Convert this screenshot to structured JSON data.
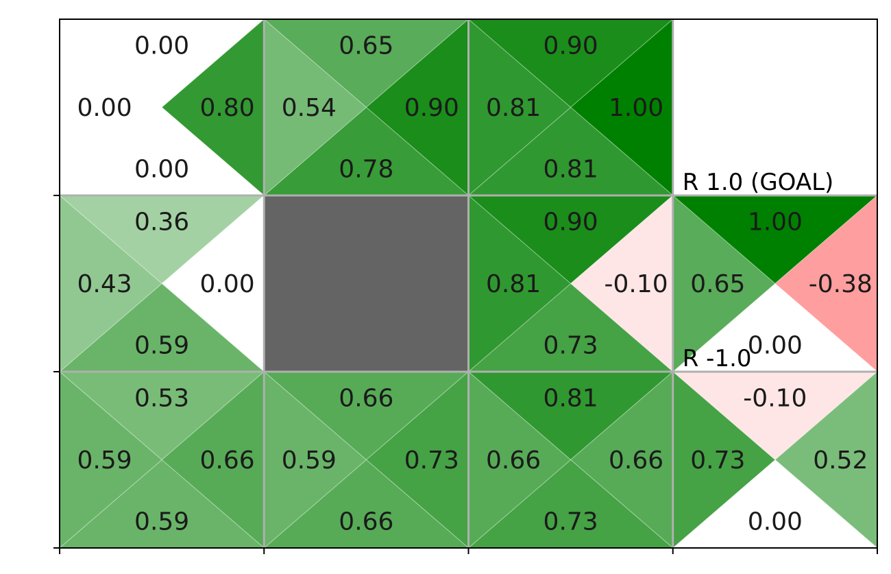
{
  "chart_data": {
    "type": "heatmap",
    "title": "",
    "xlabel": "",
    "ylabel": "",
    "grid": {
      "columns": 4,
      "rows": 3
    },
    "color_scale": {
      "positive": "#008000",
      "negative": "#ff0000",
      "zero": "#ffffff",
      "wall": "#646464",
      "grid_line": "#b0b0b0",
      "frame": "#000000"
    },
    "cells": [
      {
        "col": 0,
        "row": 0,
        "q": {
          "up": "0.00",
          "right": "0.80",
          "down": "0.00",
          "left": "0.00"
        }
      },
      {
        "col": 1,
        "row": 0,
        "q": {
          "up": "0.65",
          "right": "0.90",
          "down": "0.78",
          "left": "0.54"
        }
      },
      {
        "col": 2,
        "row": 0,
        "q": {
          "up": "0.90",
          "right": "1.00",
          "down": "0.81",
          "left": "0.81"
        }
      },
      {
        "col": 0,
        "row": 1,
        "q": {
          "up": "0.36",
          "right": "0.00",
          "down": "0.59",
          "left": "0.43"
        }
      },
      {
        "col": 2,
        "row": 1,
        "q": {
          "up": "0.90",
          "right": "-0.10",
          "down": "0.73",
          "left": "0.81"
        }
      },
      {
        "col": 3,
        "row": 1,
        "q": {
          "up": "1.00",
          "right": "-0.38",
          "down": "0.00",
          "left": "0.65"
        }
      },
      {
        "col": 0,
        "row": 2,
        "q": {
          "up": "0.53",
          "right": "0.66",
          "down": "0.59",
          "left": "0.59"
        }
      },
      {
        "col": 1,
        "row": 2,
        "q": {
          "up": "0.66",
          "right": "0.73",
          "down": "0.66",
          "left": "0.59"
        }
      },
      {
        "col": 2,
        "row": 2,
        "q": {
          "up": "0.81",
          "right": "0.66",
          "down": "0.73",
          "left": "0.66"
        }
      },
      {
        "col": 3,
        "row": 2,
        "q": {
          "up": "-0.10",
          "right": "0.52",
          "down": "0.00",
          "left": "0.73"
        }
      }
    ],
    "walls": [
      {
        "col": 1,
        "row": 1
      }
    ],
    "blank_cells": [
      {
        "col": 3,
        "row": 0
      }
    ],
    "reward_labels": [
      {
        "col": 3,
        "row": 0,
        "text": "R 1.0 (GOAL)"
      },
      {
        "col": 3,
        "row": 1,
        "text": "R -1.0"
      }
    ]
  }
}
